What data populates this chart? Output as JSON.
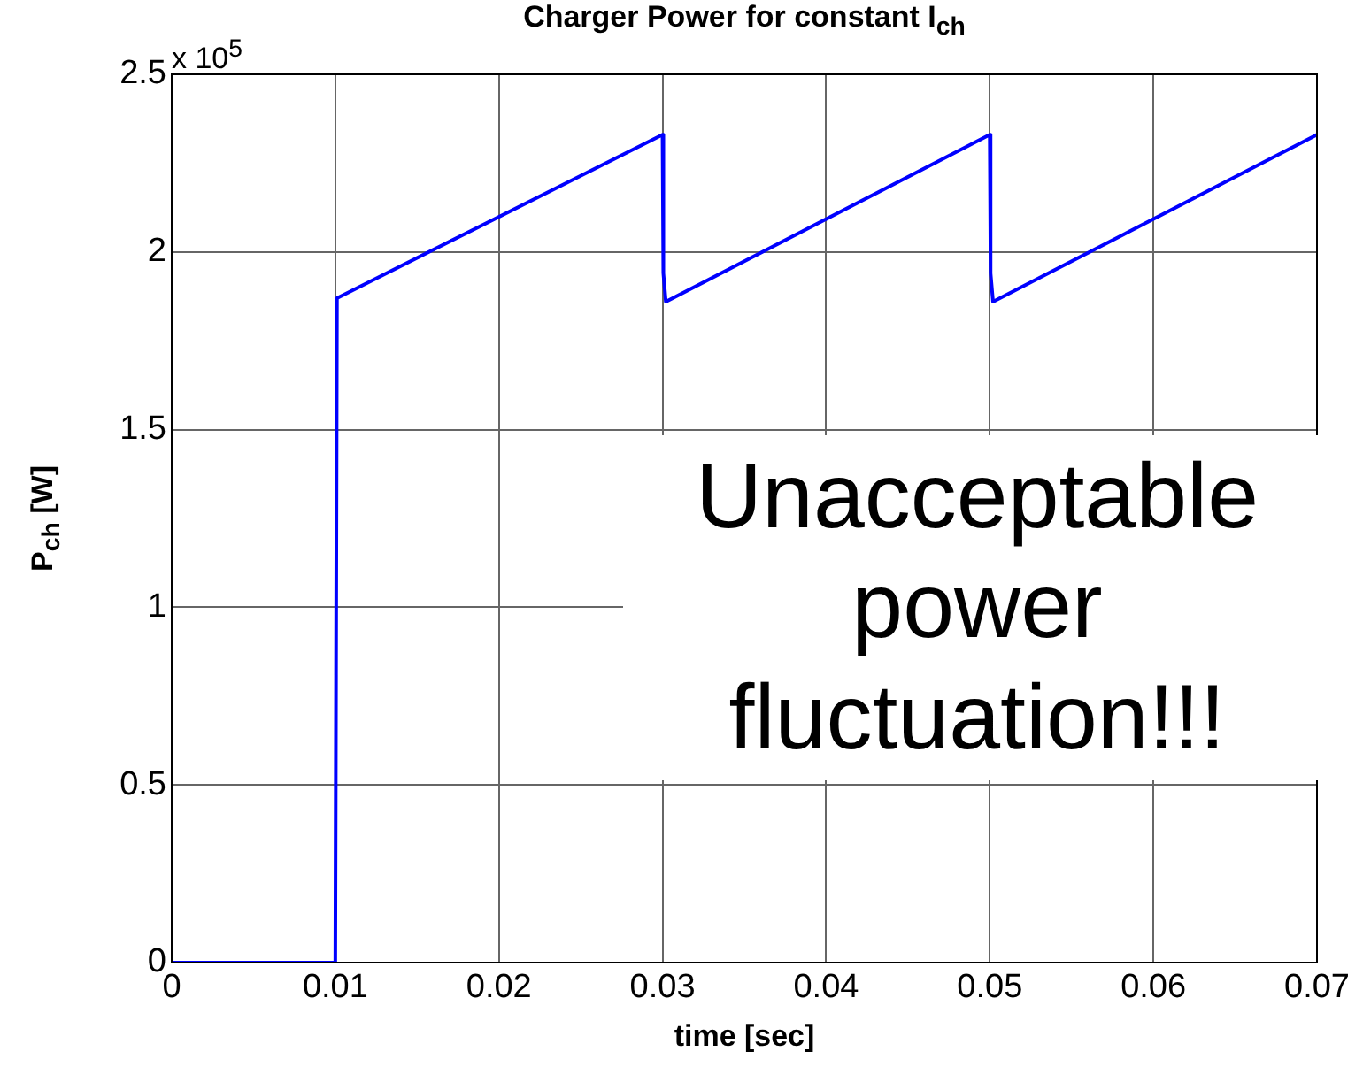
{
  "chart_data": {
    "type": "line",
    "title": "Charger Power for constant I$_{ch}$",
    "xlabel": "time [sec]",
    "ylabel": "P$_{ch}$ [W]",
    "annotations": [
      "x 10$^{5}$",
      "Unacceptable power fluctuation!!!"
    ],
    "series": [
      {
        "color": "#0000ff",
        "x": [
          0,
          0.01,
          0.0101,
          0.03,
          0.03005,
          0.0302,
          0.05,
          0.05005,
          0.0502,
          0.07
        ],
        "values": [
          0,
          0,
          1.87,
          2.33,
          1.94,
          1.86,
          2.33,
          1.94,
          1.86,
          2.33
        ]
      }
    ],
    "xlim": [
      0,
      0.07
    ],
    "xticks": [
      0,
      0.01,
      0.02,
      0.03,
      0.04,
      0.05,
      0.06,
      0.07
    ],
    "ylim": [
      0,
      2.5
    ],
    "yticks": [
      0,
      0.5,
      1,
      1.5,
      2,
      2.5
    ],
    "grid": true,
    "legend": false,
    "marker": "none",
    "line_style": "solid"
  }
}
